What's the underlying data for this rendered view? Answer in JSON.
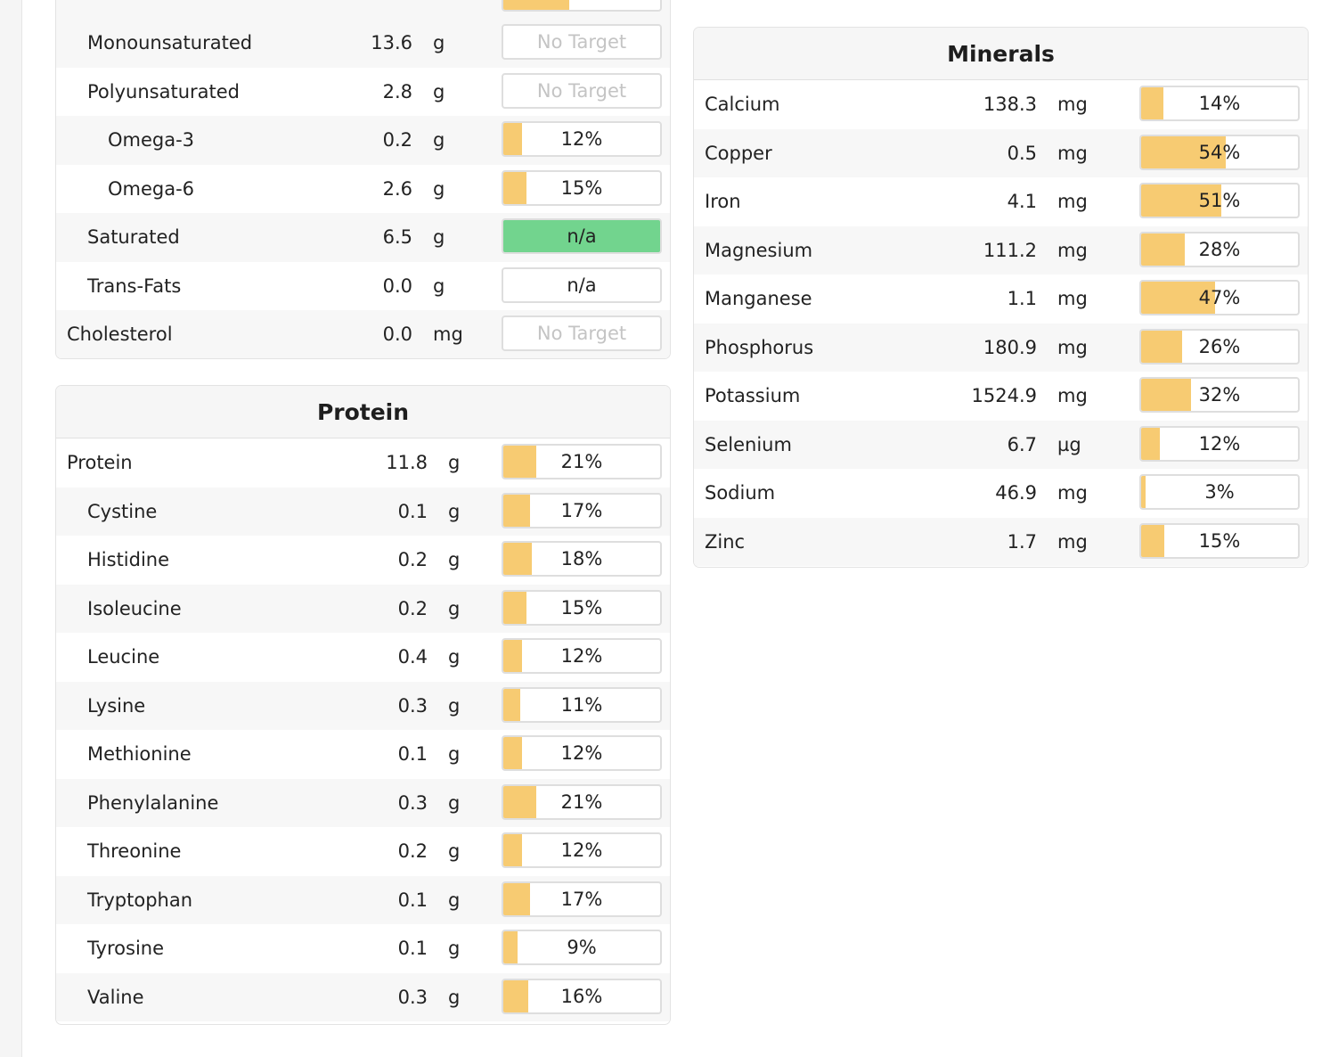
{
  "fats": {
    "rows": [
      {
        "name": "Monounsaturated",
        "amount": "13.6",
        "unit": "g",
        "target": "No Target",
        "pct": 0,
        "style": "notarget",
        "indent": 1
      },
      {
        "name": "Polyunsaturated",
        "amount": "2.8",
        "unit": "g",
        "target": "No Target",
        "pct": 0,
        "style": "notarget",
        "indent": 1
      },
      {
        "name": "Omega-3",
        "amount": "0.2",
        "unit": "g",
        "target": "12%",
        "pct": 12,
        "style": "normal",
        "indent": 2
      },
      {
        "name": "Omega-6",
        "amount": "2.6",
        "unit": "g",
        "target": "15%",
        "pct": 15,
        "style": "normal",
        "indent": 2
      },
      {
        "name": "Saturated",
        "amount": "6.5",
        "unit": "g",
        "target": "n/a",
        "pct": 0,
        "style": "green",
        "indent": 1
      },
      {
        "name": "Trans-Fats",
        "amount": "0.0",
        "unit": "g",
        "target": "n/a",
        "pct": 0,
        "style": "normal",
        "indent": 1
      },
      {
        "name": "Cholesterol",
        "amount": "0.0",
        "unit": "mg",
        "target": "No Target",
        "pct": 0,
        "style": "notarget",
        "indent": 0
      }
    ]
  },
  "protein": {
    "title": "Protein",
    "rows": [
      {
        "name": "Protein",
        "amount": "11.8",
        "unit": "g",
        "target": "21%",
        "pct": 21,
        "indent": 0
      },
      {
        "name": "Cystine",
        "amount": "0.1",
        "unit": "g",
        "target": "17%",
        "pct": 17,
        "indent": 1
      },
      {
        "name": "Histidine",
        "amount": "0.2",
        "unit": "g",
        "target": "18%",
        "pct": 18,
        "indent": 1
      },
      {
        "name": "Isoleucine",
        "amount": "0.2",
        "unit": "g",
        "target": "15%",
        "pct": 15,
        "indent": 1
      },
      {
        "name": "Leucine",
        "amount": "0.4",
        "unit": "g",
        "target": "12%",
        "pct": 12,
        "indent": 1
      },
      {
        "name": "Lysine",
        "amount": "0.3",
        "unit": "g",
        "target": "11%",
        "pct": 11,
        "indent": 1
      },
      {
        "name": "Methionine",
        "amount": "0.1",
        "unit": "g",
        "target": "12%",
        "pct": 12,
        "indent": 1
      },
      {
        "name": "Phenylalanine",
        "amount": "0.3",
        "unit": "g",
        "target": "21%",
        "pct": 21,
        "indent": 1
      },
      {
        "name": "Threonine",
        "amount": "0.2",
        "unit": "g",
        "target": "12%",
        "pct": 12,
        "indent": 1
      },
      {
        "name": "Tryptophan",
        "amount": "0.1",
        "unit": "g",
        "target": "17%",
        "pct": 17,
        "indent": 1
      },
      {
        "name": "Tyrosine",
        "amount": "0.1",
        "unit": "g",
        "target": "9%",
        "pct": 9,
        "indent": 1
      },
      {
        "name": "Valine",
        "amount": "0.3",
        "unit": "g",
        "target": "16%",
        "pct": 16,
        "indent": 1
      }
    ]
  },
  "minerals": {
    "title": "Minerals",
    "rows": [
      {
        "name": "Calcium",
        "amount": "138.3",
        "unit": "mg",
        "target": "14%",
        "pct": 14
      },
      {
        "name": "Copper",
        "amount": "0.5",
        "unit": "mg",
        "target": "54%",
        "pct": 54
      },
      {
        "name": "Iron",
        "amount": "4.1",
        "unit": "mg",
        "target": "51%",
        "pct": 51
      },
      {
        "name": "Magnesium",
        "amount": "111.2",
        "unit": "mg",
        "target": "28%",
        "pct": 28
      },
      {
        "name": "Manganese",
        "amount": "1.1",
        "unit": "mg",
        "target": "47%",
        "pct": 47
      },
      {
        "name": "Phosphorus",
        "amount": "180.9",
        "unit": "mg",
        "target": "26%",
        "pct": 26
      },
      {
        "name": "Potassium",
        "amount": "1524.9",
        "unit": "mg",
        "target": "32%",
        "pct": 32
      },
      {
        "name": "Selenium",
        "amount": "6.7",
        "unit": "µg",
        "target": "12%",
        "pct": 12
      },
      {
        "name": "Sodium",
        "amount": "46.9",
        "unit": "mg",
        "target": "3%",
        "pct": 3
      },
      {
        "name": "Zinc",
        "amount": "1.7",
        "unit": "mg",
        "target": "15%",
        "pct": 15
      }
    ]
  },
  "colors": {
    "bar_fill": "#f7cb72",
    "bar_green": "#72d48e",
    "bar_border": "#dedede",
    "muted_text": "#c4c4c4"
  }
}
